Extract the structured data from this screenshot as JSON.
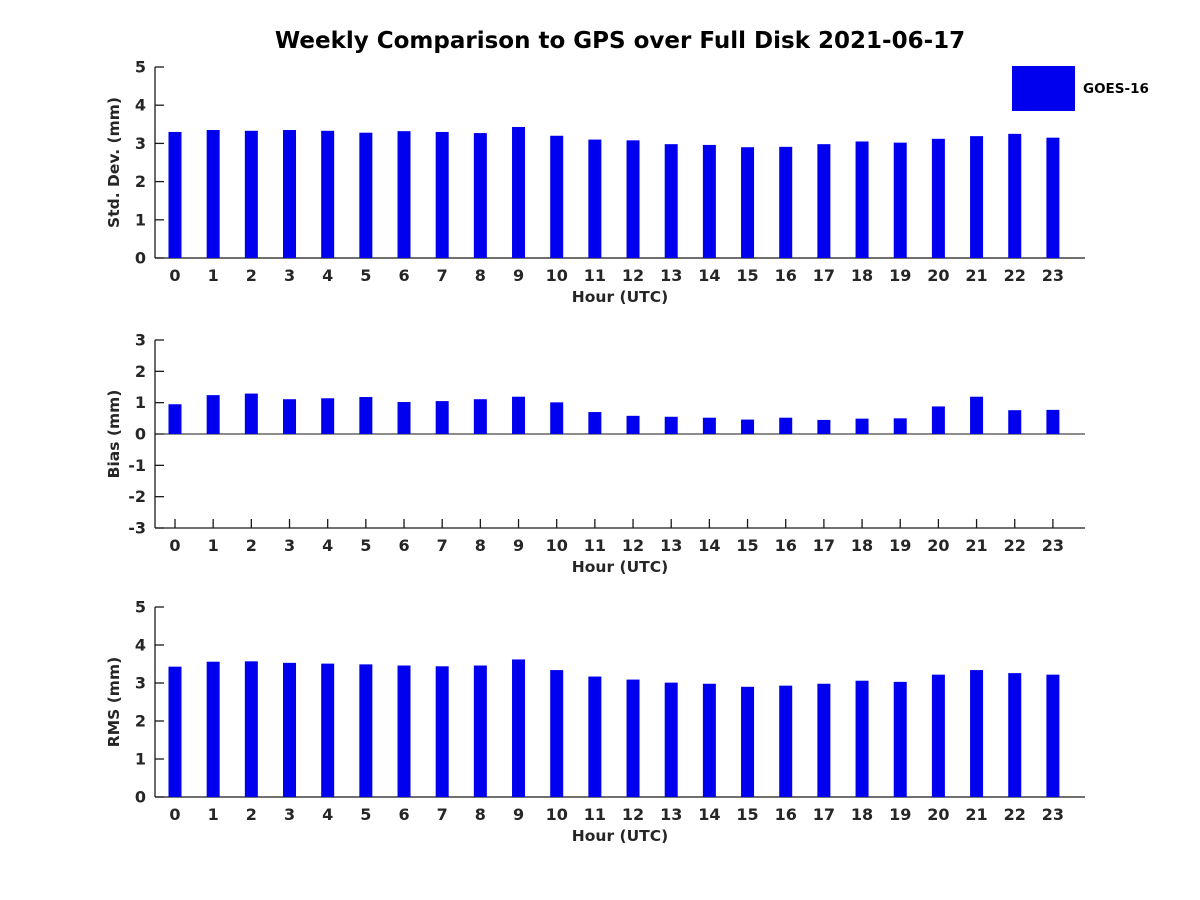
{
  "title": "Weekly Comparison to GPS over Full Disk 2021-06-17",
  "legend": {
    "label": "GOES-16"
  },
  "colors": {
    "bar": "#0000ee",
    "axis": "#1a1a1a",
    "tick_text": "#262626",
    "title_text": "#000000"
  },
  "chart_data": [
    {
      "type": "bar",
      "ylabel": "Std. Dev. (mm)",
      "xlabel": "Hour (UTC)",
      "ylim": [
        0,
        5
      ],
      "yticks": [
        0,
        1,
        2,
        3,
        4,
        5
      ],
      "legend_entry": "GOES-16",
      "categories": [
        "0",
        "1",
        "2",
        "3",
        "4",
        "5",
        "6",
        "7",
        "8",
        "9",
        "10",
        "11",
        "12",
        "13",
        "14",
        "15",
        "16",
        "17",
        "18",
        "19",
        "20",
        "21",
        "22",
        "23"
      ],
      "values": [
        3.3,
        3.35,
        3.33,
        3.35,
        3.33,
        3.28,
        3.32,
        3.3,
        3.27,
        3.43,
        3.2,
        3.1,
        3.08,
        2.98,
        2.96,
        2.9,
        2.91,
        2.98,
        3.05,
        3.02,
        3.12,
        3.19,
        3.25,
        3.15
      ]
    },
    {
      "type": "bar",
      "ylabel": "Bias (mm)",
      "xlabel": "Hour (UTC)",
      "ylim": [
        -3,
        3
      ],
      "yticks": [
        -3,
        -2,
        -1,
        0,
        1,
        2,
        3
      ],
      "legend_entry": "GOES-16",
      "categories": [
        "0",
        "1",
        "2",
        "3",
        "4",
        "5",
        "6",
        "7",
        "8",
        "9",
        "10",
        "11",
        "12",
        "13",
        "14",
        "15",
        "16",
        "17",
        "18",
        "19",
        "20",
        "21",
        "22",
        "23"
      ],
      "values": [
        0.95,
        1.24,
        1.29,
        1.11,
        1.14,
        1.18,
        1.02,
        1.05,
        1.11,
        1.19,
        1.01,
        0.7,
        0.58,
        0.55,
        0.52,
        0.46,
        0.52,
        0.45,
        0.49,
        0.5,
        0.88,
        1.19,
        0.76,
        0.77
      ]
    },
    {
      "type": "bar",
      "ylabel": "RMS (mm)",
      "xlabel": "Hour (UTC)",
      "ylim": [
        0,
        5
      ],
      "yticks": [
        0,
        1,
        2,
        3,
        4,
        5
      ],
      "legend_entry": "GOES-16",
      "categories": [
        "0",
        "1",
        "2",
        "3",
        "4",
        "5",
        "6",
        "7",
        "8",
        "9",
        "10",
        "11",
        "12",
        "13",
        "14",
        "15",
        "16",
        "17",
        "18",
        "19",
        "20",
        "21",
        "22",
        "23"
      ],
      "values": [
        3.43,
        3.56,
        3.57,
        3.53,
        3.51,
        3.49,
        3.46,
        3.44,
        3.46,
        3.62,
        3.34,
        3.17,
        3.09,
        3.01,
        2.98,
        2.9,
        2.93,
        2.98,
        3.06,
        3.03,
        3.22,
        3.34,
        3.26,
        3.22
      ]
    }
  ]
}
